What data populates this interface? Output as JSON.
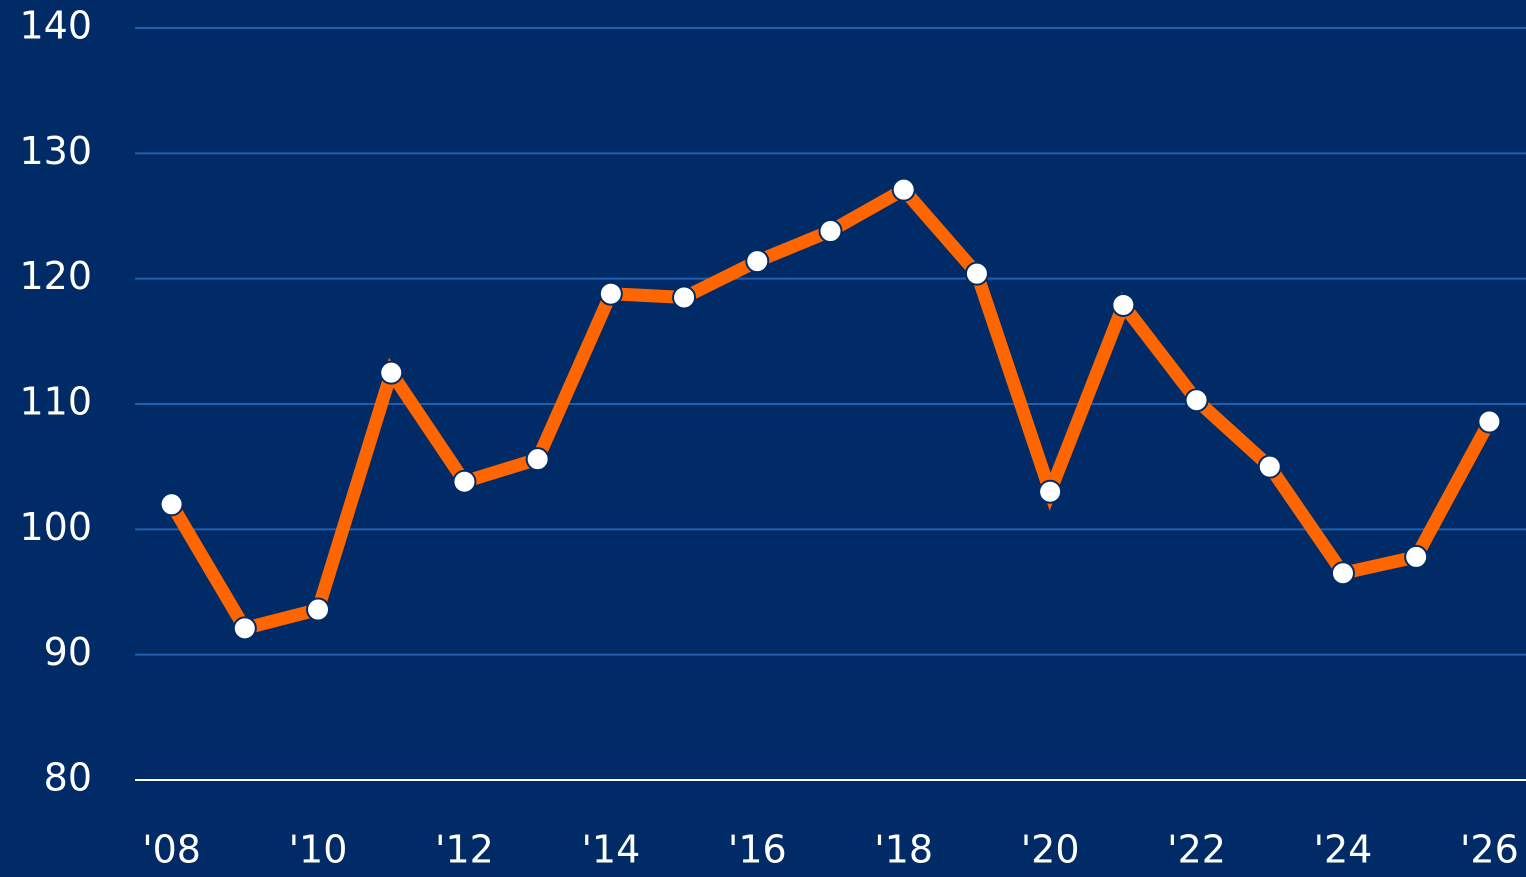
{
  "chart_data": {
    "type": "line",
    "x": [
      2008,
      2009,
      2010,
      2011,
      2012,
      2013,
      2014,
      2015,
      2016,
      2017,
      2018,
      2019,
      2020,
      2021,
      2022,
      2023,
      2024,
      2025,
      2026
    ],
    "values": [
      102.0,
      92.1,
      93.6,
      112.5,
      103.8,
      105.6,
      118.8,
      118.5,
      121.4,
      123.8,
      127.1,
      120.4,
      103.0,
      117.9,
      110.3,
      105.0,
      96.5,
      97.8,
      108.6
    ],
    "color": "#ff6600",
    "marker_color": "#ffffff",
    "xlim": [
      2007.5,
      2026.5
    ],
    "xticks": [
      {
        "value": 2008,
        "label": "'08"
      },
      {
        "value": 2010,
        "label": "'10"
      },
      {
        "value": 2012,
        "label": "'12"
      },
      {
        "value": 2014,
        "label": "'14"
      },
      {
        "value": 2016,
        "label": "'16"
      },
      {
        "value": 2018,
        "label": "'18"
      },
      {
        "value": 2020,
        "label": "'20"
      },
      {
        "value": 2022,
        "label": "'22"
      },
      {
        "value": 2024,
        "label": "'24"
      },
      {
        "value": 2026,
        "label": "'26"
      }
    ],
    "ylim": [
      80,
      140
    ],
    "yticks": [
      80,
      90,
      100,
      110,
      120,
      130,
      140
    ],
    "grid": true
  }
}
